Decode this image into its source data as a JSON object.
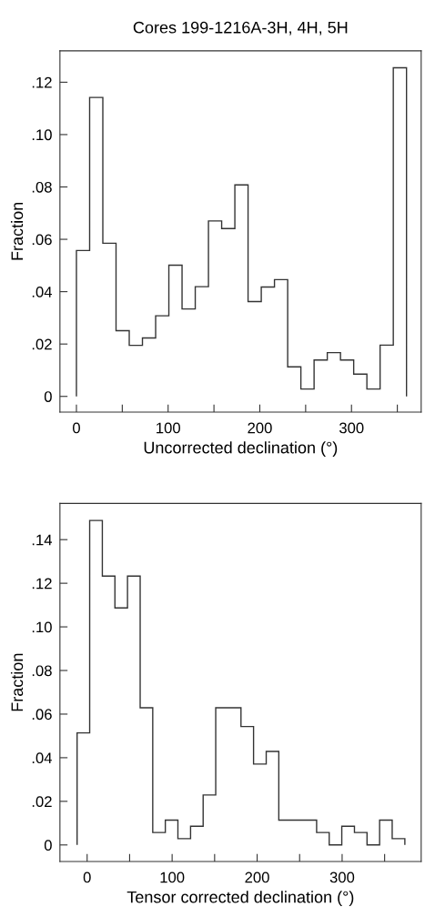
{
  "chart_data": [
    {
      "type": "histogram",
      "title": "Cores 199-1216A-3H, 4H, 5H",
      "xlabel": "Uncorrected declination (°)",
      "ylabel": "Fraction",
      "color": "#333333",
      "bins": [
        0,
        14.4,
        28.8,
        43.2,
        57.6,
        72,
        86.4,
        100.8,
        115.2,
        129.6,
        144,
        158.4,
        172.8,
        187.2,
        201.6,
        216,
        230.4,
        244.8,
        259.2,
        273.6,
        288,
        302.4,
        316.8,
        331.2,
        345.6,
        360
      ],
      "values": [
        0.0557,
        0.1142,
        0.0585,
        0.0251,
        0.0195,
        0.0223,
        0.0308,
        0.0501,
        0.0334,
        0.0419,
        0.067,
        0.0641,
        0.0808,
        0.0362,
        0.0418,
        0.0446,
        0.0113,
        0.0028,
        0.0139,
        0.0167,
        0.0139,
        0.0085,
        0.0028,
        0.0196,
        0.1255
      ],
      "xlim": [
        -18,
        376
      ],
      "ylim": [
        -0.006,
        0.132
      ],
      "xticks": [
        0,
        {
          "value": 50,
          "label": null
        },
        100,
        {
          "value": 150,
          "label": null
        },
        200,
        {
          "value": 250,
          "label": null
        },
        300,
        {
          "value": 350,
          "label": null
        }
      ],
      "yticks": [
        0,
        {
          "value": 0.02,
          "label": ".02"
        },
        {
          "value": 0.04,
          "label": ".04"
        },
        {
          "value": 0.06,
          "label": ".06"
        },
        {
          "value": 0.08,
          "label": ".08"
        },
        {
          "value": 0.1,
          "label": ".10"
        },
        {
          "value": 0.12,
          "label": ".12"
        }
      ],
      "grid": false,
      "legend": false
    },
    {
      "type": "histogram",
      "xlabel": "Tensor corrected declination (°)",
      "ylabel": "Fraction",
      "color": "#333333",
      "bins": [
        -11.8,
        3.0,
        17.9,
        32.7,
        47.5,
        62.4,
        77.2,
        92.0,
        106.8,
        121.7,
        136.5,
        151.3,
        166.2,
        181.0,
        195.8,
        210.7,
        225.5,
        240.3,
        255.1,
        270.0,
        284.8,
        299.6,
        314.5,
        329.3,
        344.1,
        358.9,
        373.8
      ],
      "values": [
        0.0514,
        0.1488,
        0.1233,
        0.1087,
        0.1233,
        0.0629,
        0.0057,
        0.0114,
        0.0029,
        0.0086,
        0.0229,
        0.0629,
        0.0629,
        0.0543,
        0.0371,
        0.0429,
        0.0114,
        0.0114,
        0.0114,
        0.0057,
        0,
        0.0086,
        0.0057,
        0,
        0.0114,
        0.0029
      ],
      "xlim": [
        -32,
        393
      ],
      "ylim": [
        -0.0076,
        0.1566
      ],
      "xticks": [
        0,
        {
          "value": 50,
          "label": null
        },
        100,
        {
          "value": 150,
          "label": null
        },
        200,
        {
          "value": 250,
          "label": null
        },
        300,
        {
          "value": 350,
          "label": null
        }
      ],
      "yticks": [
        0,
        {
          "value": 0.02,
          "label": ".02"
        },
        {
          "value": 0.04,
          "label": ".04"
        },
        {
          "value": 0.06,
          "label": ".06"
        },
        {
          "value": 0.08,
          "label": ".08"
        },
        {
          "value": 0.1,
          "label": ".10"
        },
        {
          "value": 0.12,
          "label": ".12"
        },
        {
          "value": 0.14,
          "label": ".14"
        }
      ],
      "grid": false,
      "legend": false
    }
  ]
}
